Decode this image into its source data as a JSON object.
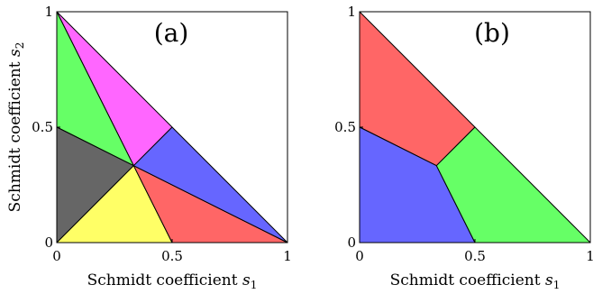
{
  "chart_data": [
    {
      "type": "area",
      "panel_label": "(a)",
      "xlabel_text": "Schmidt coefficient ",
      "xlabel_sub": "s",
      "xlabel_idx": "1",
      "ylabel_text": "Schmidt coefficient ",
      "ylabel_sub": "s",
      "ylabel_idx": "2",
      "xlim": [
        0,
        1
      ],
      "ylim": [
        0,
        1
      ],
      "xticks": [
        0,
        0.5,
        1
      ],
      "yticks": [
        0,
        0.5,
        1
      ],
      "xtick_labels": [
        "0",
        "0.5",
        "1"
      ],
      "ytick_labels": [
        "0",
        "0.5",
        "1"
      ],
      "regions": [
        {
          "color": "#ff66ff",
          "points": [
            [
              0,
              1
            ],
            [
              0.3333,
              0.3333
            ],
            [
              0.5,
              0.5
            ]
          ]
        },
        {
          "color": "#66ff66",
          "points": [
            [
              0,
              1
            ],
            [
              0,
              0.5
            ],
            [
              0.3333,
              0.3333
            ]
          ]
        },
        {
          "color": "#666666",
          "points": [
            [
              0,
              0.5
            ],
            [
              0,
              0
            ],
            [
              0.3333,
              0.3333
            ]
          ]
        },
        {
          "color": "#ffff66",
          "points": [
            [
              0,
              0
            ],
            [
              0.5,
              0
            ],
            [
              0.3333,
              0.3333
            ]
          ]
        },
        {
          "color": "#ff6666",
          "points": [
            [
              0.5,
              0
            ],
            [
              1,
              0
            ],
            [
              0.3333,
              0.3333
            ]
          ]
        },
        {
          "color": "#6666ff",
          "points": [
            [
              1,
              0
            ],
            [
              0.5,
              0.5
            ],
            [
              0.3333,
              0.3333
            ]
          ]
        }
      ]
    },
    {
      "type": "area",
      "panel_label": "(b)",
      "xlabel_text": "Schmidt coefficient ",
      "xlabel_sub": "s",
      "xlabel_idx": "1",
      "ylabel_text": "",
      "xlim": [
        0,
        1
      ],
      "ylim": [
        0,
        1
      ],
      "xticks": [
        0,
        0.5,
        1
      ],
      "yticks": [
        0,
        0.5,
        1
      ],
      "xtick_labels": [
        "0",
        "0.5",
        "1"
      ],
      "ytick_labels": [
        "0",
        "0.5",
        "1"
      ],
      "regions": [
        {
          "color": "#ff6666",
          "points": [
            [
              0,
              1
            ],
            [
              0,
              0.5
            ],
            [
              0.3333,
              0.3333
            ],
            [
              0.5,
              0.5
            ]
          ]
        },
        {
          "color": "#6666ff",
          "points": [
            [
              0,
              0.5
            ],
            [
              0,
              0
            ],
            [
              0.5,
              0
            ],
            [
              0.3333,
              0.3333
            ]
          ]
        },
        {
          "color": "#66ff66",
          "points": [
            [
              0.5,
              0
            ],
            [
              1,
              0
            ],
            [
              0.5,
              0.5
            ],
            [
              0.3333,
              0.3333
            ]
          ]
        }
      ]
    }
  ]
}
